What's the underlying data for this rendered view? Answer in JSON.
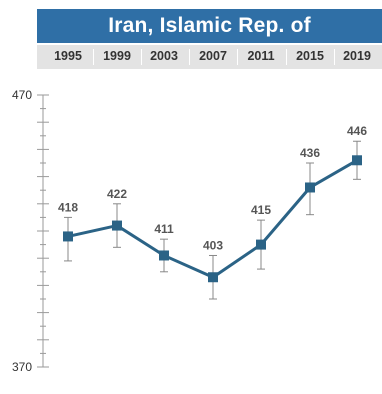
{
  "title": "Iran, Islamic Rep. of",
  "chart_data": {
    "type": "line",
    "title": "Iran, Islamic Rep. of",
    "x": [
      "1995",
      "1999",
      "2003",
      "2007",
      "2011",
      "2015",
      "2019"
    ],
    "values": [
      418,
      422,
      411,
      403,
      415,
      436,
      446
    ],
    "error_low": [
      409,
      414,
      405,
      395,
      406,
      426,
      439
    ],
    "error_high": [
      425,
      430,
      417,
      411,
      424,
      445,
      453
    ],
    "ylim": [
      370,
      470
    ],
    "yticks": [
      370,
      470
    ],
    "xlabel": "",
    "ylabel": "",
    "colors": {
      "line": "#2b6386",
      "marker": "#2b6386",
      "error": "#888888",
      "title_bg": "#2f6fa6",
      "year_bg": "#e3e3e3"
    }
  }
}
